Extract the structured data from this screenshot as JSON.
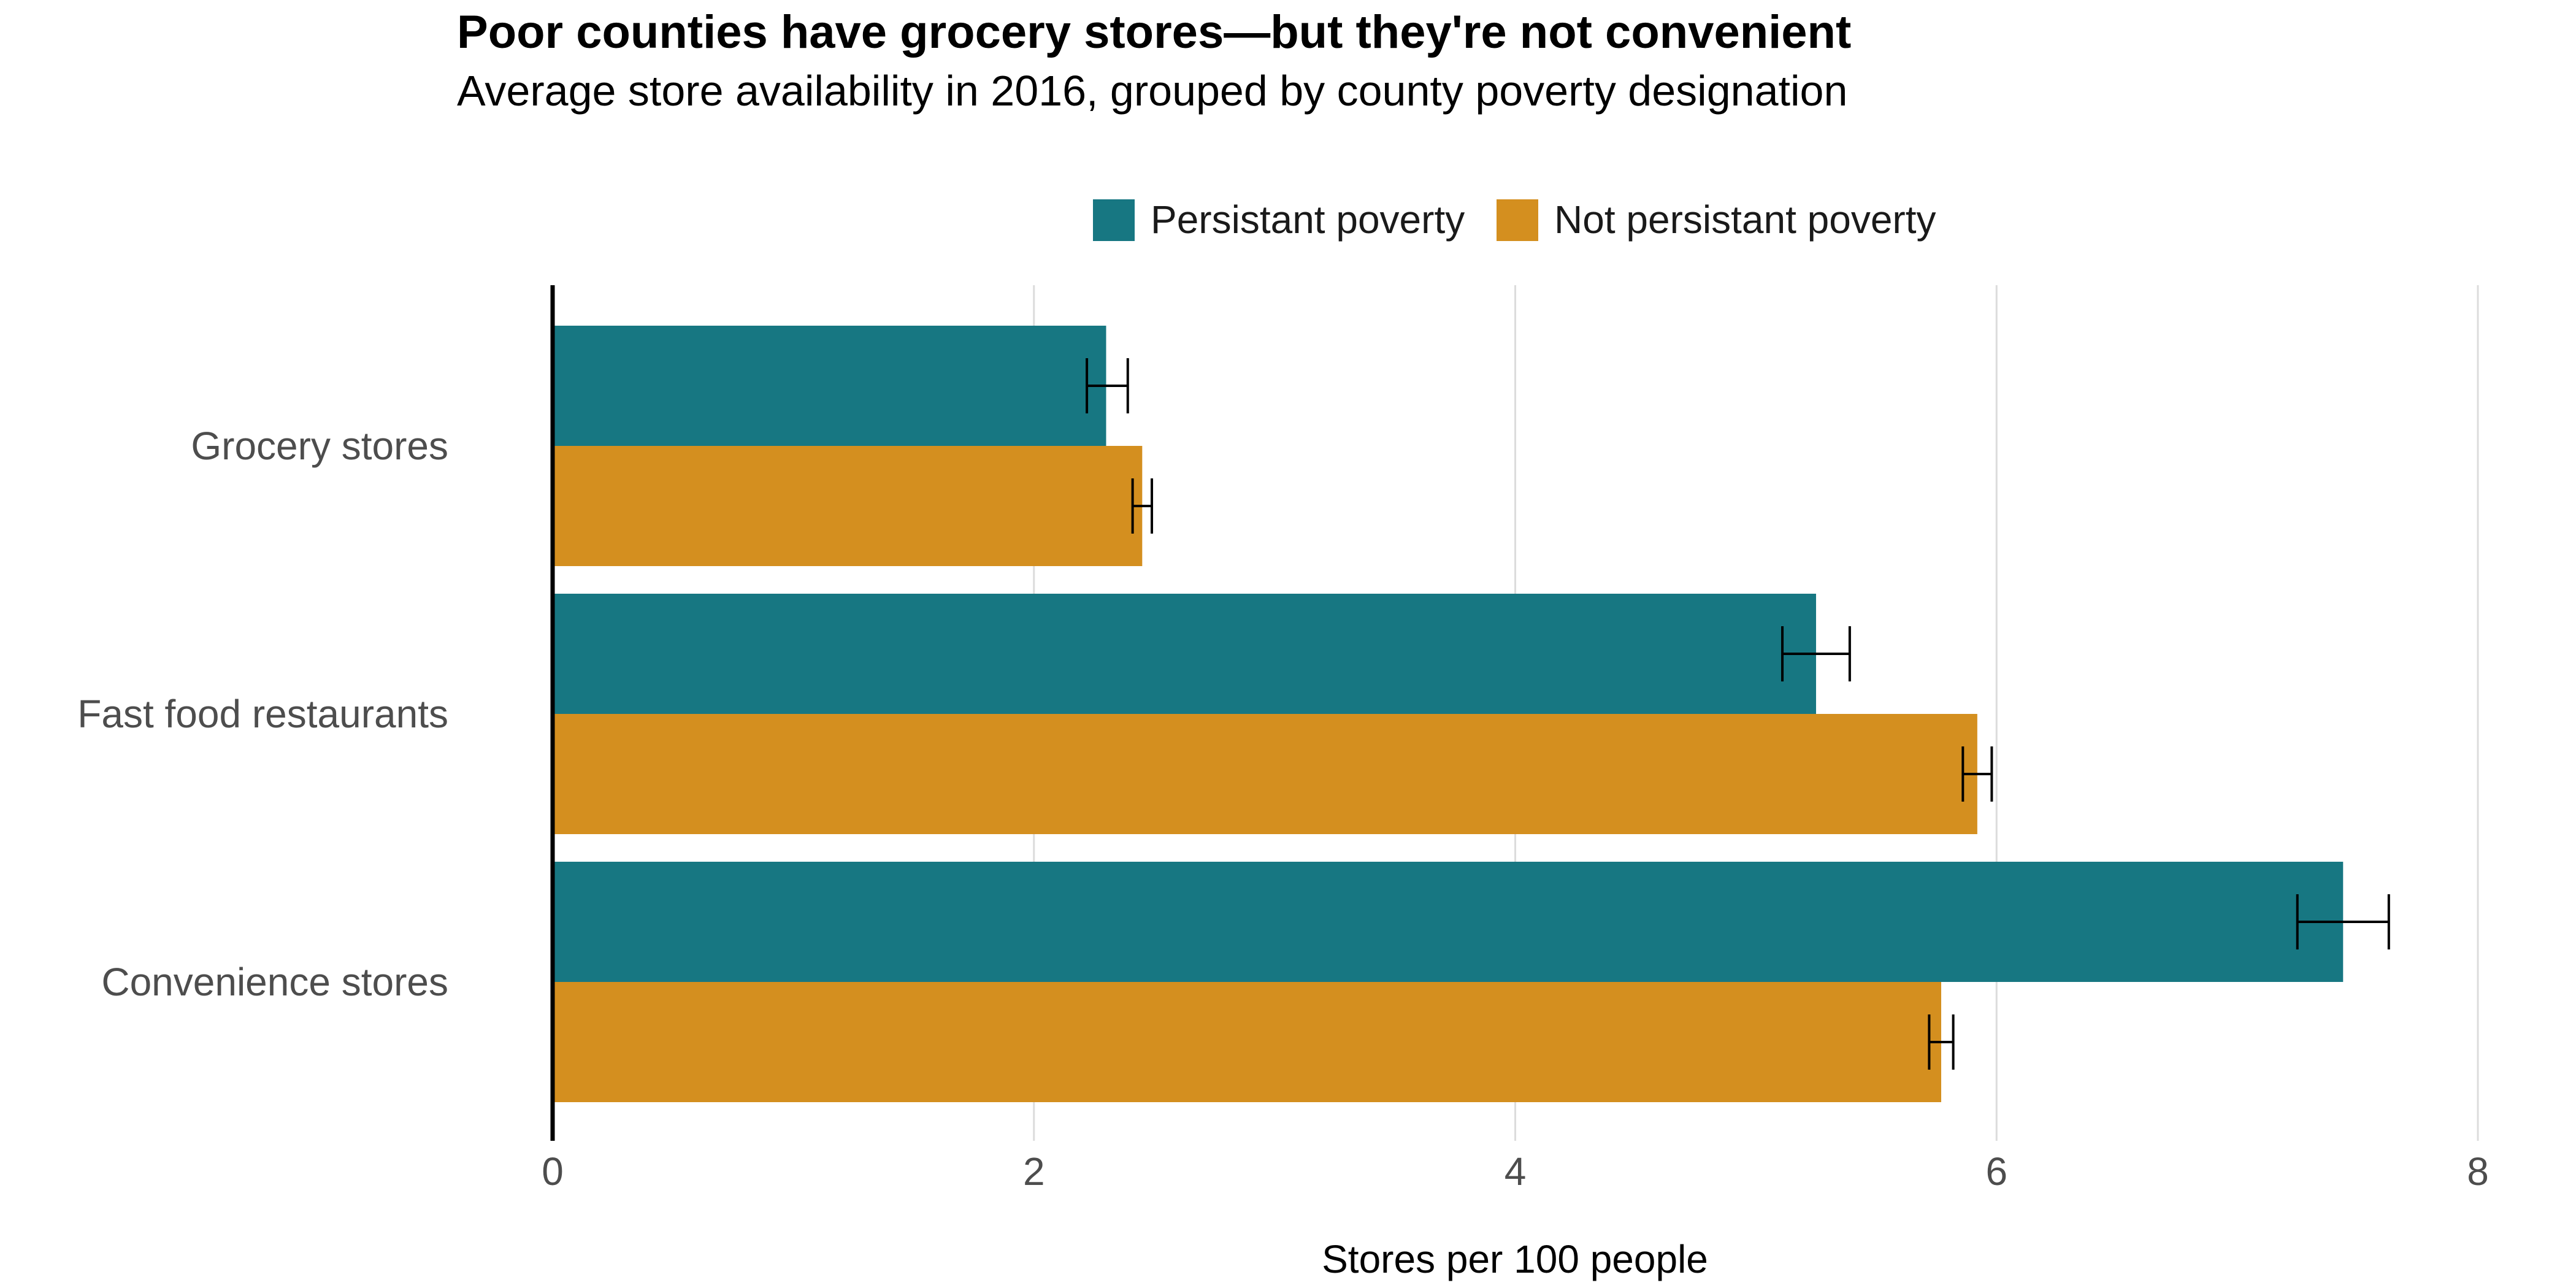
{
  "chart_data": {
    "type": "bar",
    "orientation": "horizontal",
    "title": "Poor counties have grocery stores—but they're not convenient",
    "subtitle": "Average store availability in 2016, grouped by county poverty designation",
    "xlabel": "Stores per 100 people",
    "ylabel": "",
    "categories": [
      "Grocery stores",
      "Fast food restaurants",
      "Convenience stores"
    ],
    "series": [
      {
        "name": "Persistant poverty",
        "color": "#177782",
        "values": [
          2.3,
          5.25,
          7.44
        ],
        "error_low": [
          2.22,
          5.11,
          7.25
        ],
        "error_high": [
          2.39,
          5.39,
          7.63
        ]
      },
      {
        "name": "Not persistant poverty",
        "color": "#d48f1f",
        "values": [
          2.45,
          5.92,
          5.77
        ],
        "error_low": [
          2.41,
          5.86,
          5.72
        ],
        "error_high": [
          2.49,
          5.98,
          5.82
        ]
      }
    ],
    "xlim": [
      0,
      8
    ],
    "xticks": [
      0,
      2,
      4,
      6,
      8
    ],
    "grid": "vertical",
    "legend_position": "top"
  }
}
